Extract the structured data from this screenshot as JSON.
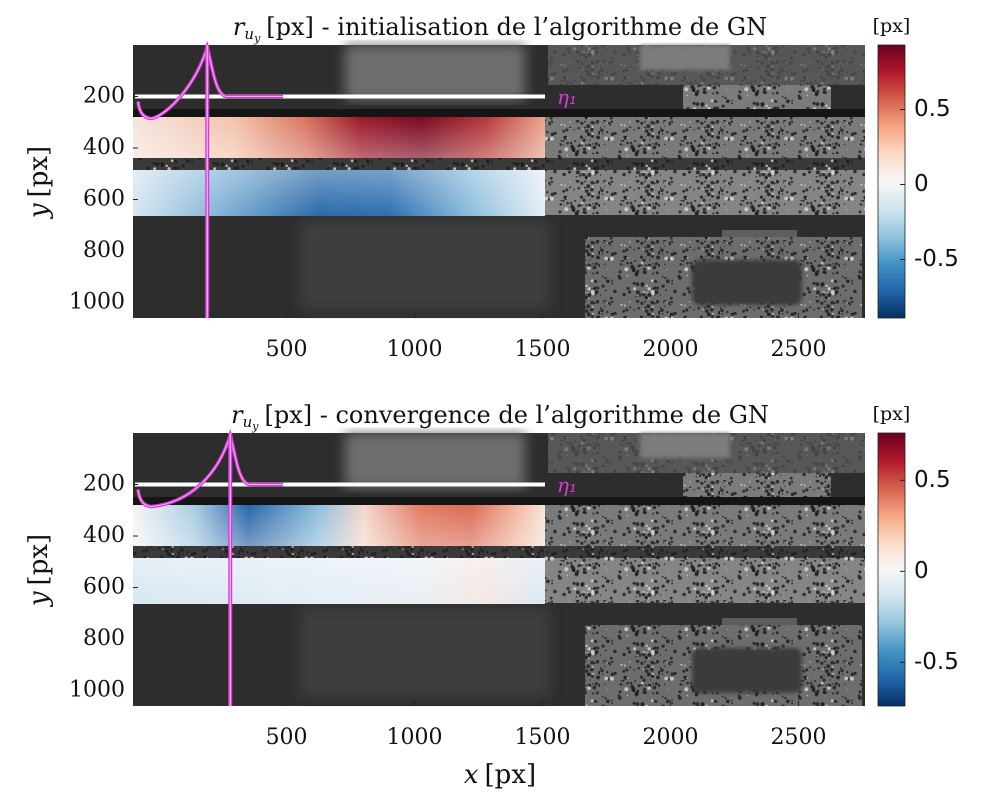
{
  "chart_data": [
    {
      "type": "heatmap",
      "title": {
        "symbol": "r",
        "sub": "u",
        "subsub": "y",
        "text": "[px] - initialisation de l’algorithme de GN"
      },
      "ylabel": {
        "var": "y",
        "unit": "[px]"
      },
      "xlim": [
        -100,
        2760
      ],
      "xticks": [
        500,
        1000,
        1500,
        2000,
        2500
      ],
      "ylim": [
        0,
        1060
      ],
      "yticks": [
        200,
        400,
        600,
        800,
        1000
      ],
      "section": {
        "label": "η₁",
        "x": 190,
        "y": 200
      },
      "colorbar": {
        "label": "[px]",
        "lim": [
          -0.89,
          0.93
        ],
        "ticks": [
          0.5,
          0,
          -0.5
        ],
        "colors": [
          "#67001f",
          "#b2182b",
          "#d6604d",
          "#f4a582",
          "#fddbc7",
          "#f7f7f7",
          "#d1e5f0",
          "#92c5de",
          "#4393c3",
          "#2166ac",
          "#053061"
        ]
      }
    },
    {
      "type": "heatmap",
      "title": {
        "symbol": "r",
        "sub": "u",
        "subsub": "y",
        "text": "[px] - convergence de l’algorithme de GN"
      },
      "ylabel": {
        "var": "y",
        "unit": "[px]"
      },
      "xlabel": {
        "var": "x",
        "unit": "[px]"
      },
      "xlim": [
        -100,
        2760
      ],
      "xticks": [
        500,
        1000,
        1500,
        2000,
        2500
      ],
      "ylim": [
        0,
        1060
      ],
      "yticks": [
        200,
        400,
        600,
        800,
        1000
      ],
      "section": {
        "label": "η₁",
        "x": 280,
        "y": 200
      },
      "colorbar": {
        "label": "[px]",
        "lim": [
          -0.74,
          0.76
        ],
        "ticks": [
          0.5,
          0,
          -0.5
        ],
        "colors": [
          "#67001f",
          "#b2182b",
          "#d6604d",
          "#f4a582",
          "#fddbc7",
          "#f7f7f7",
          "#d1e5f0",
          "#92c5de",
          "#4393c3",
          "#2166ac",
          "#053061"
        ]
      }
    }
  ]
}
